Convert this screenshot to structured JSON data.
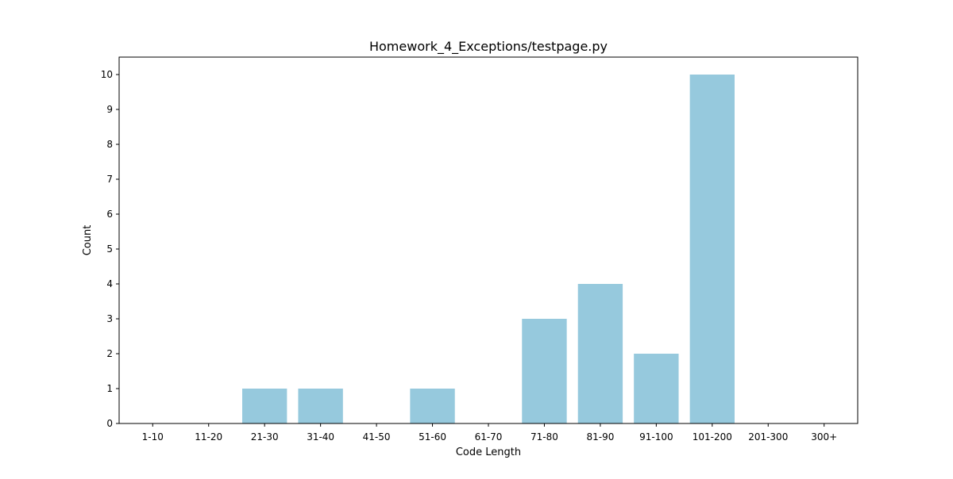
{
  "chart_data": {
    "type": "bar",
    "title": "Homework_4_Exceptions/testpage.py",
    "xlabel": "Code Length",
    "ylabel": "Count",
    "categories": [
      "1-10",
      "11-20",
      "21-30",
      "31-40",
      "41-50",
      "51-60",
      "61-70",
      "71-80",
      "81-90",
      "91-100",
      "101-200",
      "201-300",
      "300+"
    ],
    "values": [
      0,
      0,
      1,
      1,
      0,
      1,
      0,
      3,
      4,
      2,
      10,
      0,
      0
    ],
    "ylim": [
      0,
      10.5
    ],
    "yticks": [
      0,
      1,
      2,
      3,
      4,
      5,
      6,
      7,
      8,
      9,
      10
    ],
    "grid": false,
    "legend": "none",
    "colors": {
      "bar": "#96c9dd",
      "axis": "#000000",
      "background": "#ffffff"
    }
  }
}
